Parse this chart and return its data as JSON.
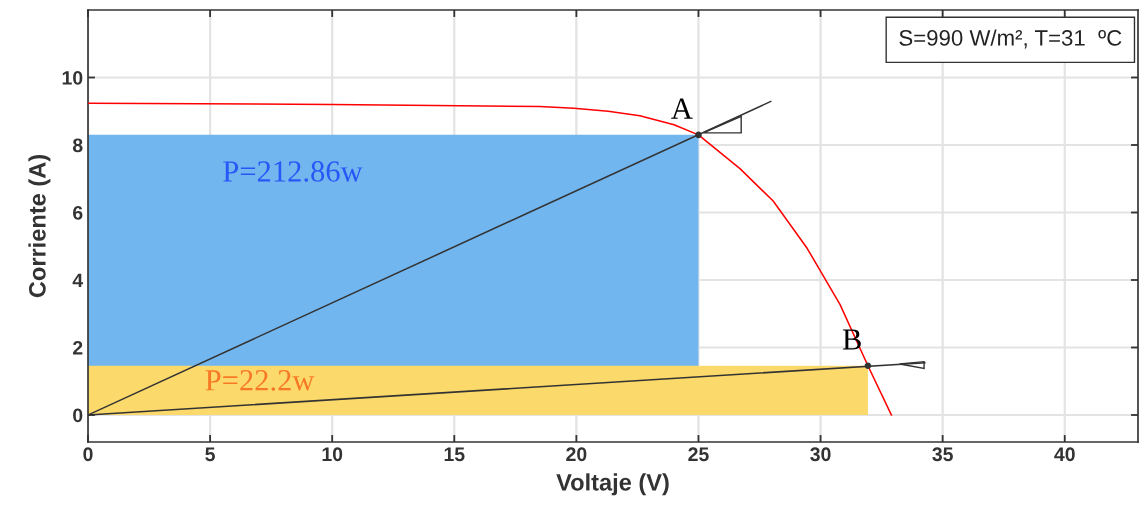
{
  "chart_data": {
    "type": "line",
    "xlabel": "Voltaje (V)",
    "ylabel": "Corriente (A)",
    "xlim": [
      0,
      43
    ],
    "ylim": [
      -0.8,
      12
    ],
    "xticks": [
      0,
      5,
      10,
      15,
      20,
      25,
      30,
      35,
      40
    ],
    "yticks": [
      0,
      2,
      4,
      6,
      8,
      10
    ],
    "grid": true,
    "series": [
      {
        "type": "area",
        "name": "P=212.86w",
        "color": "#72b6ef",
        "x": [
          0,
          25
        ],
        "values": [
          8.3,
          8.3
        ]
      },
      {
        "type": "area",
        "name": "P=22.2w",
        "color": "#fcd96b",
        "x": [
          0,
          31.94
        ],
        "values": [
          1.46,
          1.46
        ]
      },
      {
        "color": "#ff0000",
        "x": [
          0,
          10,
          18.5,
          19.9,
          21.3,
          22.6,
          24,
          25,
          26.7,
          28.06,
          29.45,
          30.8,
          31.94,
          32.9
        ],
        "values": [
          9.24,
          9.2,
          9.14,
          9.09,
          9.0,
          8.87,
          8.6,
          8.3,
          7.3,
          6.34,
          4.94,
          3.27,
          1.46,
          0
        ]
      },
      {
        "color": "#333333",
        "x": [
          0,
          27.96
        ],
        "values": [
          0,
          9.29
        ]
      },
      {
        "color": "#333333",
        "x": [
          0,
          34.27
        ],
        "values": [
          0,
          1.55
        ]
      },
      {
        "type": "scatter",
        "color": "#333333",
        "marker": "circle",
        "x": [
          25,
          31.94
        ],
        "values": [
          8.3,
          1.46
        ]
      }
    ],
    "annotations": [
      {
        "text": "A",
        "x": 25,
        "y": 8.3
      },
      {
        "text": "B",
        "x": 31.94,
        "y": 1.46
      },
      "S=990 W/m², T=31  ºC"
    ]
  }
}
